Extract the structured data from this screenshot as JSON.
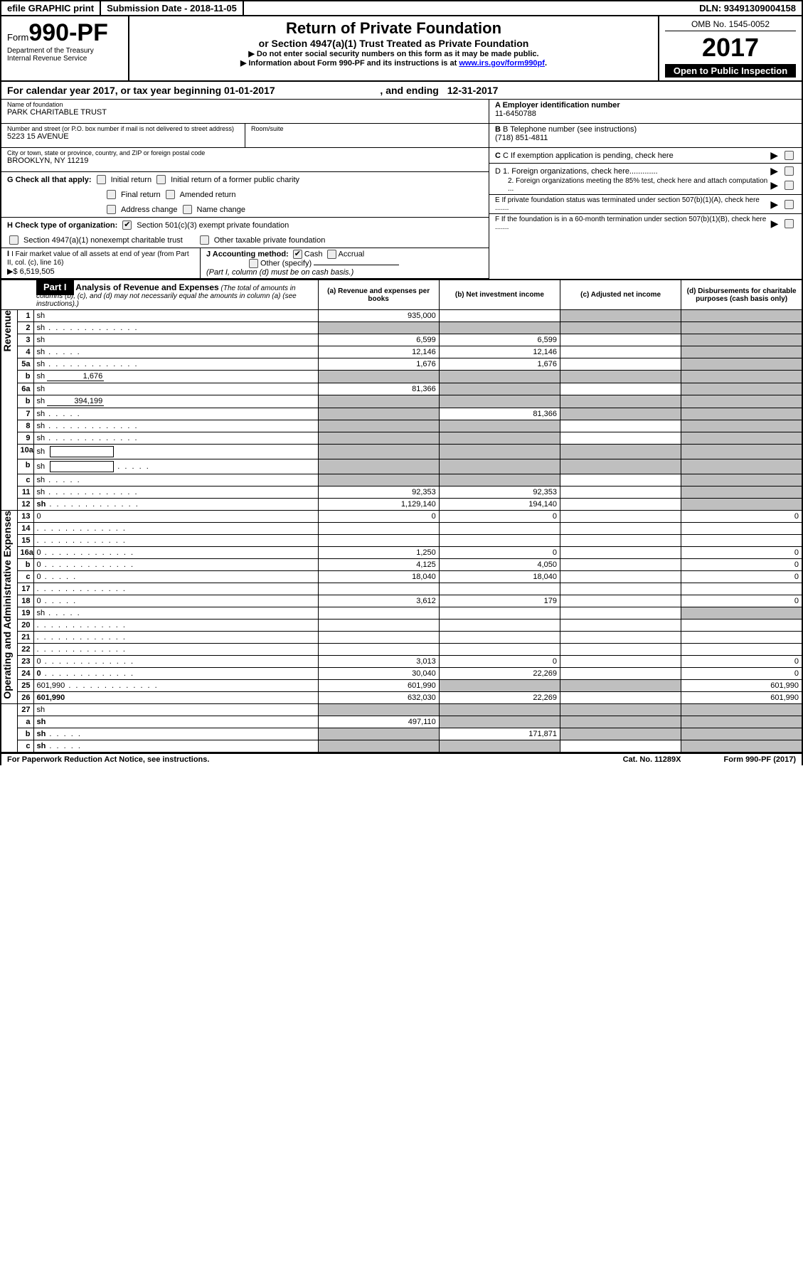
{
  "topbar": {
    "efile": "efile GRAPHIC print",
    "subdate": "Submission Date - 2018-11-05",
    "dln": "DLN: 93491309004158"
  },
  "header": {
    "form_prefix": "Form",
    "form_num": "990-PF",
    "dept1": "Department of the Treasury",
    "dept2": "Internal Revenue Service",
    "title": "Return of Private Foundation",
    "subtitle": "or Section 4947(a)(1) Trust Treated as Private Foundation",
    "note1": "▶ Do not enter social security numbers on this form as it may be made public.",
    "note2": "▶ Information about Form 990-PF and its instructions is at ",
    "note2_link": "www.irs.gov/form990pf",
    "omb": "OMB No. 1545-0052",
    "year": "2017",
    "open": "Open to Public Inspection"
  },
  "calyear": {
    "text": "For calendar year 2017, or tax year beginning 01-01-2017",
    "mid": ", and ending",
    "end": "12-31-2017"
  },
  "info": {
    "name_label": "Name of foundation",
    "name": "PARK CHARITABLE TRUST",
    "addr_label": "Number and street (or P.O. box number if mail is not delivered to street address)",
    "room_label": "Room/suite",
    "addr": "5223 15 AVENUE",
    "city_label": "City or town, state or province, country, and ZIP or foreign postal code",
    "city": "BROOKLYN, NY  11219",
    "a_label": "A Employer identification number",
    "a_val": "11-6450788",
    "b_label": "B Telephone number (see instructions)",
    "b_val": "(718) 851-4811",
    "c_label": "C If exemption application is pending, check here",
    "d1": "D 1. Foreign organizations, check here.............",
    "d2": "2. Foreign organizations meeting the 85% test, check here and attach computation ...",
    "e": "E  If private foundation status was terminated under section 507(b)(1)(A), check here .......",
    "f": "F  If the foundation is in a 60-month termination under section 507(b)(1)(B), check here .......",
    "g_label": "G Check all that apply:",
    "g_opts": [
      "Initial return",
      "Initial return of a former public charity",
      "Final return",
      "Amended return",
      "Address change",
      "Name change"
    ],
    "h_label": "H Check type of organization:",
    "h_opts": [
      "Section 501(c)(3) exempt private foundation",
      "Section 4947(a)(1) nonexempt charitable trust",
      "Other taxable private foundation"
    ],
    "i_label": "I Fair market value of all assets at end of year (from Part II, col. (c), line 16)",
    "i_val": "▶$  6,519,505",
    "j_label": "J Accounting method:",
    "j_opts": [
      "Cash",
      "Accrual"
    ],
    "j_other": "Other (specify)",
    "j_note": "(Part I, column (d) must be on cash basis.)"
  },
  "part1": {
    "label": "Part I",
    "title": "Analysis of Revenue and Expenses",
    "note": "(The total of amounts in columns (b), (c), and (d) may not necessarily equal the amounts in column (a) (see instructions).)",
    "cols": {
      "a": "(a)   Revenue and expenses per books",
      "b": "(b)   Net investment income",
      "c": "(c)   Adjusted net income",
      "d": "(d)   Disbursements for charitable purposes (cash basis only)"
    }
  },
  "sections": {
    "revenue": "Revenue",
    "expenses": "Operating and Administrative Expenses"
  },
  "rows": [
    {
      "n": "1",
      "d": "sh",
      "a": "935,000",
      "b": "",
      "c": "sh"
    },
    {
      "n": "2",
      "d": "sh",
      "dots": true,
      "a": "sh",
      "b": "sh",
      "c": "sh"
    },
    {
      "n": "3",
      "d": "sh",
      "a": "6,599",
      "b": "6,599",
      "c": ""
    },
    {
      "n": "4",
      "d": "sh",
      "dots": "s",
      "a": "12,146",
      "b": "12,146",
      "c": ""
    },
    {
      "n": "5a",
      "d": "sh",
      "dots": true,
      "a": "1,676",
      "b": "1,676",
      "c": ""
    },
    {
      "n": "b",
      "d": "sh",
      "inline": "1,676",
      "a": "sh",
      "b": "sh",
      "c": "sh"
    },
    {
      "n": "6a",
      "d": "sh",
      "a": "81,366",
      "b": "sh",
      "c": ""
    },
    {
      "n": "b",
      "d": "sh",
      "inline": "394,199",
      "a": "sh",
      "b": "sh",
      "c": "sh"
    },
    {
      "n": "7",
      "d": "sh",
      "dots": "s",
      "a": "sh",
      "b": "81,366",
      "c": "sh"
    },
    {
      "n": "8",
      "d": "sh",
      "dots": true,
      "a": "sh",
      "b": "sh",
      "c": ""
    },
    {
      "n": "9",
      "d": "sh",
      "dots": true,
      "a": "sh",
      "b": "sh",
      "c": ""
    },
    {
      "n": "10a",
      "d": "sh",
      "inlinebox": true,
      "a": "sh",
      "b": "sh",
      "c": "sh"
    },
    {
      "n": "b",
      "d": "sh",
      "dots": "s",
      "inlinebox": true,
      "a": "sh",
      "b": "sh",
      "c": "sh"
    },
    {
      "n": "c",
      "d": "sh",
      "dots": "s",
      "a": "sh",
      "b": "sh",
      "c": ""
    },
    {
      "n": "11",
      "d": "sh",
      "dots": true,
      "a": "92,353",
      "b": "92,353",
      "c": ""
    },
    {
      "n": "12",
      "d": "sh",
      "dots": true,
      "bold": true,
      "a": "1,129,140",
      "b": "194,140",
      "c": ""
    }
  ],
  "exp_rows": [
    {
      "n": "13",
      "d": "0",
      "a": "0",
      "b": "0",
      "c": ""
    },
    {
      "n": "14",
      "d": "",
      "dots": true,
      "a": "",
      "b": "",
      "c": ""
    },
    {
      "n": "15",
      "d": "",
      "dots": true,
      "a": "",
      "b": "",
      "c": ""
    },
    {
      "n": "16a",
      "d": "0",
      "dots": true,
      "a": "1,250",
      "b": "0",
      "c": ""
    },
    {
      "n": "b",
      "d": "0",
      "dots": true,
      "a": "4,125",
      "b": "4,050",
      "c": ""
    },
    {
      "n": "c",
      "d": "0",
      "dots": "s",
      "a": "18,040",
      "b": "18,040",
      "c": ""
    },
    {
      "n": "17",
      "d": "",
      "dots": true,
      "a": "",
      "b": "",
      "c": ""
    },
    {
      "n": "18",
      "d": "0",
      "dots": "s",
      "a": "3,612",
      "b": "179",
      "c": ""
    },
    {
      "n": "19",
      "d": "sh",
      "dots": "s",
      "a": "",
      "b": "",
      "c": ""
    },
    {
      "n": "20",
      "d": "",
      "dots": true,
      "a": "",
      "b": "",
      "c": ""
    },
    {
      "n": "21",
      "d": "",
      "dots": true,
      "a": "",
      "b": "",
      "c": ""
    },
    {
      "n": "22",
      "d": "",
      "dots": true,
      "a": "",
      "b": "",
      "c": ""
    },
    {
      "n": "23",
      "d": "0",
      "dots": true,
      "a": "3,013",
      "b": "0",
      "c": ""
    },
    {
      "n": "24",
      "d": "0",
      "dots": true,
      "bold": true,
      "a": "30,040",
      "b": "22,269",
      "c": ""
    },
    {
      "n": "25",
      "d": "601,990",
      "dots": true,
      "a": "601,990",
      "b": "sh",
      "c": "sh"
    },
    {
      "n": "26",
      "d": "601,990",
      "bold": true,
      "a": "632,030",
      "b": "22,269",
      "c": ""
    }
  ],
  "final_rows": [
    {
      "n": "27",
      "d": "sh",
      "a": "sh",
      "b": "sh",
      "c": "sh"
    },
    {
      "n": "a",
      "d": "sh",
      "bold": true,
      "a": "497,110",
      "b": "sh",
      "c": "sh"
    },
    {
      "n": "b",
      "d": "sh",
      "bold": true,
      "dots": "s",
      "a": "sh",
      "b": "171,871",
      "c": "sh"
    },
    {
      "n": "c",
      "d": "sh",
      "bold": true,
      "dots": "s",
      "a": "sh",
      "b": "sh",
      "c": ""
    }
  ],
  "footer": {
    "left": "For Paperwork Reduction Act Notice, see instructions.",
    "mid": "Cat. No. 11289X",
    "right": "Form 990-PF (2017)"
  }
}
